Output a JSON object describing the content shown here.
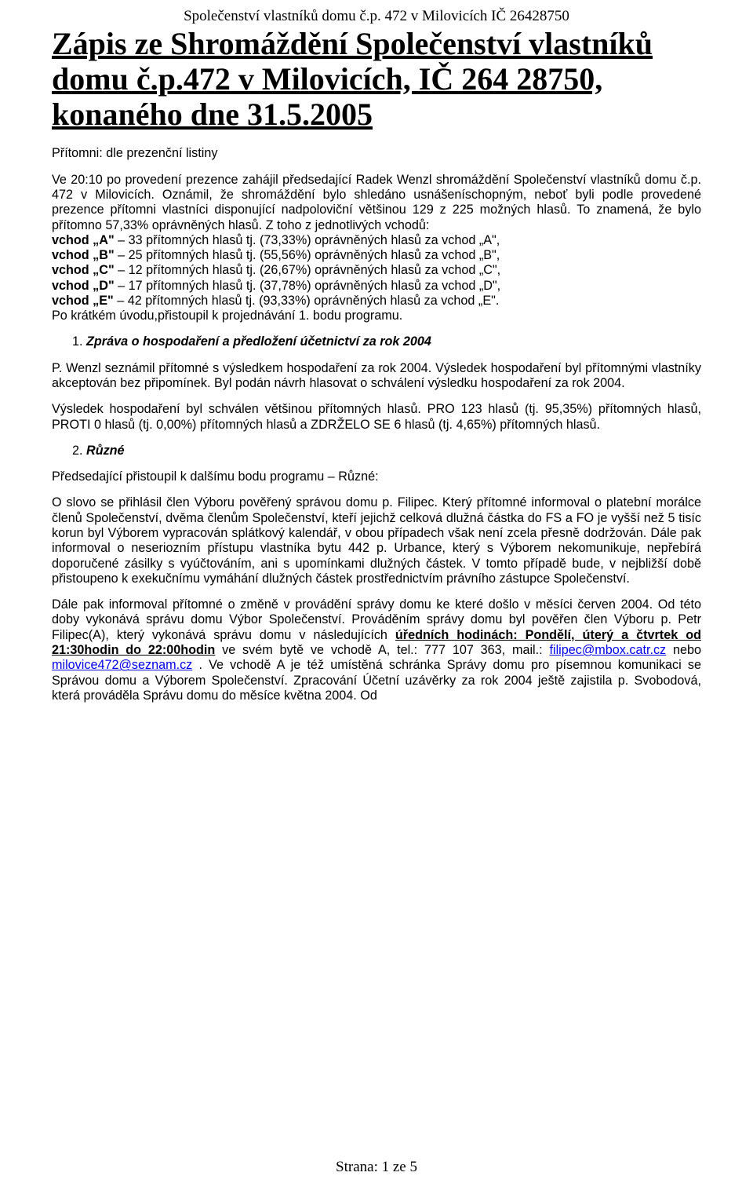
{
  "header": "Společenství vlastníků domu č.p. 472 v Milovicích IČ 26428750",
  "title": "Zápis ze Shromáždění Společenství vlastníků domu č.p.472 v Milovicích, IČ 264 28750, konaného dne 31.5.2005",
  "intro_para1": "Přítomni: dle prezenční listiny",
  "intro_para2": "Ve 20:10 po provedení prezence zahájil předsedající Radek Wenzl shromáždění Společenství vlastníků domu č.p. 472 v Milovicích. Oznámil, že shromáždění bylo shledáno usnášeníschopným, neboť byli podle provedené prezence přítomni vlastníci disponující nadpoloviční většinou 129 z 225 možných hlasů. To znamená, že bylo přítomno 57,33% oprávněných hlasů. Z toho z jednotlivých vchodů:",
  "vchody": [
    {
      "label": "vchod „A\"",
      "text": " – 33 přítomných hlasů tj. (73,33%) oprávněných hlasů za vchod „A\","
    },
    {
      "label": "vchod „B\"",
      "text": " – 25 přítomných hlasů tj. (55,56%) oprávněných hlasů za vchod „B\","
    },
    {
      "label": "vchod „C\"",
      "text": " – 12 přítomných hlasů tj. (26,67%) oprávněných hlasů za vchod „C\","
    },
    {
      "label": "vchod „D\"",
      "text": " – 17 přítomných hlasů tj. (37,78%) oprávněných hlasů za vchod „D\","
    },
    {
      "label": "vchod „E\"",
      "text": " – 42 přítomných hlasů tj. (93,33%) oprávněných hlasů za vchod „E\"."
    }
  ],
  "intro_close": "Po krátkém úvodu,přistoupil k projednávání 1. bodu programu.",
  "section1": {
    "num": "1.",
    "heading": "Zpráva o hospodaření a předložení účetnictví za rok 2004",
    "p1": "P. Wenzl seznámil přítomné s výsledkem hospodaření za rok 2004. Výsledek hospodaření byl přítomnými vlastníky akceptován bez připomínek. Byl podán návrh hlasovat o schválení výsledku hospodaření za rok 2004.",
    "p2": "Výsledek hospodaření byl schválen většinou přítomných hlasů. PRO 123 hlasů (tj. 95,35%) přítomných hlasů, PROTI 0 hlasů (tj. 0,00%) přítomných hlasů a ZDRŽELO SE 6 hlasů (tj. 4,65%) přítomných hlasů."
  },
  "section2": {
    "num": "2.",
    "heading": "Různé",
    "p1": "Předsedající přistoupil k dalšímu bodu programu – Různé:",
    "p2": "O slovo se přihlásil člen Výboru pověřený správou domu p. Filipec. Který přítomné informoval o platební morálce členů Společenství, dvěma členům Společenství, kteří jejichž celková dlužná částka do FS a FO je vyšší než 5 tisíc korun byl Výborem vypracován splátkový kalendář, v obou případech však není zcela přesně dodržován. Dále pak informoval o neseriozním přístupu vlastníka bytu 442 p. Urbance, který s Výborem nekomunikuje, nepřebírá doporučené zásilky s vyúčtováním, ani s upomínkami dlužných částek. V tomto případě bude, v nejbližší době přistoupeno k exekučnímu vymáhání dlužných částek prostřednictvím právního zástupce Společenství.",
    "p3_a": "Dále pak informoval přítomné o změně v provádění správy domu ke které došlo v měsíci červen 2004. Od této doby vykonává správu domu Výbor Společenství. Prováděním správy domu byl pověřen člen Výboru p. Petr Filipec(A), který vykonává správu domu v následujících ",
    "p3_hours_label": "úředních hodinách: Pondělí, úterý a čtvrtek od 21:30hodin do 22:00hodin",
    "p3_b": " ve svém bytě ve vchodě A, tel.: 777 107 363, mail.: ",
    "email1": "filipec@mbox.catr.cz",
    "p3_c": " nebo ",
    "email2": "milovice472@seznam.cz",
    "p3_d": " . Ve vchodě A je též umístěná schránka Správy domu pro písemnou komunikaci se Správou domu a Výborem Společenství. Zpracování Účetní uzávěrky za rok 2004 ještě zajistila p. Svobodová, která prováděla Správu domu do měsíce května 2004. Od"
  },
  "footer": "Strana: 1 ze 5"
}
